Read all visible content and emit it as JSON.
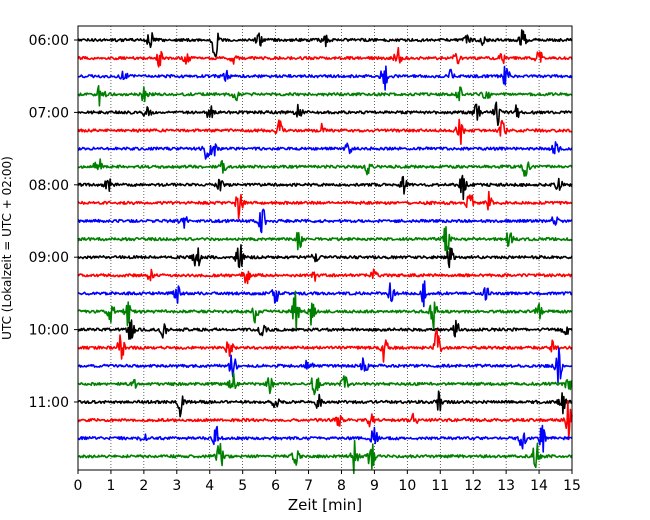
{
  "chart_data": {
    "type": "line",
    "title": "",
    "xlabel": "Zeit  [min]",
    "ylabel": "UTC (Lokalzeit = UTC + 02:00)",
    "xlim": [
      0,
      15
    ],
    "xticks": [
      0,
      1,
      2,
      3,
      4,
      5,
      6,
      7,
      8,
      9,
      10,
      11,
      12,
      13,
      14,
      15
    ],
    "xtick_labels": [
      "0",
      "1",
      "2",
      "3",
      "4",
      "5",
      "6",
      "7",
      "8",
      "9",
      "10",
      "11",
      "12",
      "13",
      "14",
      "15"
    ],
    "ytick_labels": [
      "06:00",
      "07:00",
      "08:00",
      "09:00",
      "10:00",
      "11:00"
    ],
    "ytick_trace_index": [
      0,
      4,
      8,
      12,
      16,
      20
    ],
    "trace_interval_minutes": 15,
    "first_trace_start": "06:00",
    "color_cycle": [
      "#000000",
      "#ff0000",
      "#0000ff",
      "#008000"
    ],
    "grid": "vertical-dotted",
    "traces": [
      {
        "start": "06:00",
        "events": [
          [
            2.2,
            0.5
          ],
          [
            4.15,
            1.0
          ],
          [
            5.5,
            0.35
          ],
          [
            7.5,
            0.3
          ],
          [
            11.8,
            0.3
          ],
          [
            12.25,
            0.3
          ],
          [
            13.5,
            0.55
          ]
        ]
      },
      {
        "start": "06:15",
        "events": [
          [
            2.5,
            0.6
          ],
          [
            3.3,
            0.3
          ],
          [
            4.7,
            0.3
          ],
          [
            9.7,
            0.8
          ],
          [
            11.5,
            0.3
          ],
          [
            12.9,
            0.3
          ],
          [
            14.0,
            0.5
          ]
        ]
      },
      {
        "start": "06:30",
        "events": [
          [
            1.4,
            0.3
          ],
          [
            4.5,
            0.3
          ],
          [
            9.3,
            0.7
          ],
          [
            13.0,
            0.7
          ],
          [
            11.3,
            0.3
          ]
        ]
      },
      {
        "start": "06:45",
        "events": [
          [
            0.7,
            0.8
          ],
          [
            2.0,
            0.35
          ],
          [
            4.8,
            0.3
          ],
          [
            11.6,
            0.35
          ],
          [
            12.4,
            0.45
          ]
        ]
      },
      {
        "start": "07:00",
        "events": [
          [
            2.1,
            0.45
          ],
          [
            4.0,
            0.45
          ],
          [
            6.7,
            0.4
          ],
          [
            12.1,
            0.5
          ],
          [
            12.7,
            0.9
          ],
          [
            13.3,
            0.45
          ]
        ]
      },
      {
        "start": "07:15",
        "events": [
          [
            6.1,
            0.6
          ],
          [
            7.4,
            0.3
          ],
          [
            11.6,
            0.7
          ],
          [
            12.9,
            0.6
          ]
        ]
      },
      {
        "start": "07:30",
        "events": [
          [
            3.9,
            0.6
          ],
          [
            4.1,
            0.5
          ],
          [
            8.2,
            0.35
          ],
          [
            14.5,
            0.45
          ]
        ]
      },
      {
        "start": "07:45",
        "events": [
          [
            0.6,
            0.7
          ],
          [
            4.4,
            0.35
          ],
          [
            8.8,
            0.55
          ],
          [
            13.6,
            0.6
          ]
        ]
      },
      {
        "start": "08:00",
        "events": [
          [
            0.9,
            0.55
          ],
          [
            4.3,
            0.3
          ],
          [
            9.9,
            0.45
          ],
          [
            11.7,
            0.85
          ],
          [
            14.6,
            0.35
          ]
        ]
      },
      {
        "start": "08:15",
        "events": [
          [
            4.9,
            1.0
          ],
          [
            11.9,
            1.0
          ],
          [
            12.5,
            0.65
          ]
        ]
      },
      {
        "start": "08:30",
        "events": [
          [
            3.2,
            0.6
          ],
          [
            5.6,
            0.8
          ],
          [
            14.5,
            0.6
          ]
        ]
      },
      {
        "start": "08:45",
        "events": [
          [
            6.7,
            0.6
          ],
          [
            11.2,
            1.0
          ],
          [
            13.1,
            0.5
          ]
        ]
      },
      {
        "start": "09:00",
        "events": [
          [
            3.6,
            0.8
          ],
          [
            4.9,
            1.0
          ],
          [
            7.2,
            0.35
          ],
          [
            11.3,
            0.55
          ]
        ]
      },
      {
        "start": "09:15",
        "events": [
          [
            2.2,
            0.3
          ],
          [
            5.1,
            0.55
          ],
          [
            7.2,
            0.3
          ],
          [
            9.0,
            0.3
          ]
        ]
      },
      {
        "start": "09:30",
        "events": [
          [
            3.0,
            0.55
          ],
          [
            6.0,
            0.6
          ],
          [
            9.5,
            0.55
          ],
          [
            10.5,
            0.7
          ],
          [
            12.4,
            0.3
          ]
        ]
      },
      {
        "start": "09:45",
        "events": [
          [
            1.0,
            0.6
          ],
          [
            1.5,
            0.75
          ],
          [
            5.4,
            0.6
          ],
          [
            6.6,
            1.0
          ],
          [
            7.1,
            0.7
          ],
          [
            10.8,
            1.0
          ],
          [
            14.0,
            0.35
          ]
        ]
      },
      {
        "start": "10:00",
        "events": [
          [
            1.6,
            0.7
          ],
          [
            2.6,
            0.5
          ],
          [
            5.6,
            0.4
          ],
          [
            11.5,
            0.5
          ],
          [
            14.8,
            0.35
          ]
        ]
      },
      {
        "start": "10:15",
        "events": [
          [
            1.3,
            0.7
          ],
          [
            4.6,
            0.7
          ],
          [
            9.3,
            0.8
          ],
          [
            10.9,
            0.9
          ],
          [
            14.4,
            0.35
          ]
        ]
      },
      {
        "start": "10:30",
        "events": [
          [
            4.7,
            0.7
          ],
          [
            7.0,
            0.45
          ],
          [
            8.7,
            0.5
          ],
          [
            14.6,
            1.0
          ]
        ]
      },
      {
        "start": "10:45",
        "events": [
          [
            1.7,
            0.3
          ],
          [
            4.7,
            0.7
          ],
          [
            5.8,
            0.6
          ],
          [
            7.2,
            0.85
          ],
          [
            8.1,
            0.55
          ],
          [
            14.9,
            0.45
          ]
        ]
      },
      {
        "start": "11:00",
        "events": [
          [
            3.1,
            0.85
          ],
          [
            6.0,
            0.35
          ],
          [
            7.3,
            0.35
          ],
          [
            11.0,
            0.9
          ],
          [
            14.7,
            0.65
          ]
        ]
      },
      {
        "start": "11:15",
        "events": [
          [
            7.9,
            0.55
          ],
          [
            8.9,
            0.4
          ],
          [
            10.2,
            0.35
          ],
          [
            14.9,
            1.0
          ]
        ]
      },
      {
        "start": "11:30",
        "events": [
          [
            2.0,
            0.3
          ],
          [
            4.2,
            0.6
          ],
          [
            9.0,
            0.6
          ],
          [
            13.5,
            0.6
          ],
          [
            14.1,
            0.75
          ]
        ]
      },
      {
        "start": "11:45",
        "events": [
          [
            4.3,
            0.85
          ],
          [
            6.6,
            0.5
          ],
          [
            8.4,
            1.0
          ],
          [
            8.9,
            0.9
          ],
          [
            13.9,
            0.85
          ]
        ]
      }
    ]
  }
}
